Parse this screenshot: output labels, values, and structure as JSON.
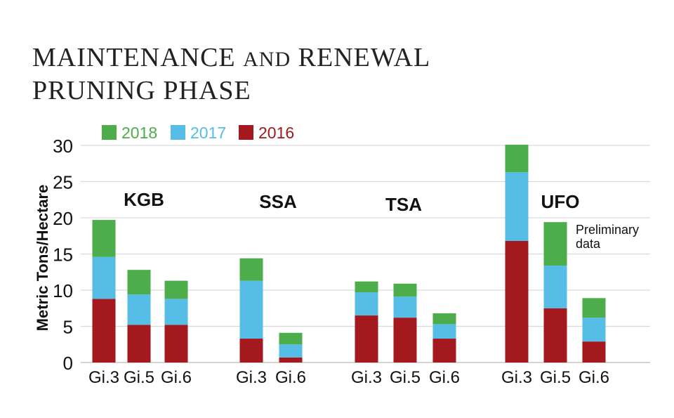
{
  "title": {
    "line1_part1": "MAINTENANCE",
    "line1_part2": "AND",
    "line1_part3": "RENEWAL",
    "line2": "PRUNING PHASE"
  },
  "colors": {
    "2018": "#4cad4a",
    "2017": "#56bde6",
    "2016": "#a3191e",
    "legend_2018_text": "#4cad4a",
    "legend_2017_text": "#56bde6",
    "legend_2016_text": "#a3191e"
  },
  "chart_data": {
    "type": "bar",
    "stacked": true,
    "ylabel": "Metric Tons/Hectare",
    "ylim": [
      0,
      30
    ],
    "yticks": [
      0,
      5,
      10,
      15,
      20,
      25,
      30
    ],
    "grid": true,
    "legend": [
      "2018",
      "2017",
      "2016"
    ],
    "legend_position": "top-left",
    "groups": [
      {
        "name": "KGB",
        "bars": [
          {
            "label": "Gi.3",
            "2016": 8.8,
            "2017": 5.8,
            "2018": 5.1
          },
          {
            "label": "Gi.5",
            "2016": 5.2,
            "2017": 4.2,
            "2018": 3.4
          },
          {
            "label": "Gi.6",
            "2016": 5.2,
            "2017": 3.6,
            "2018": 2.5
          }
        ]
      },
      {
        "name": "SSA",
        "bars": [
          {
            "label": "Gi.3",
            "2016": 3.3,
            "2017": 8.0,
            "2018": 3.1
          },
          {
            "label": "Gi.6",
            "2016": 0.7,
            "2017": 1.8,
            "2018": 1.6
          }
        ]
      },
      {
        "name": "TSA",
        "bars": [
          {
            "label": "Gi.3",
            "2016": 6.5,
            "2017": 3.2,
            "2018": 1.5
          },
          {
            "label": "Gi.5",
            "2016": 6.2,
            "2017": 2.9,
            "2018": 1.8
          },
          {
            "label": "Gi.6",
            "2016": 3.3,
            "2017": 2.0,
            "2018": 1.5
          }
        ]
      },
      {
        "name": "UFO",
        "bars": [
          {
            "label": "Gi.3",
            "2016": 16.8,
            "2017": 9.5,
            "2018": 3.8
          },
          {
            "label": "Gi.5",
            "2016": 7.5,
            "2017": 5.9,
            "2018": 6.0
          },
          {
            "label": "Gi.6",
            "2016": 2.9,
            "2017": 3.3,
            "2018": 2.7
          }
        ]
      }
    ],
    "annotation": {
      "text_line1": "Preliminary",
      "text_line2": "data"
    }
  }
}
